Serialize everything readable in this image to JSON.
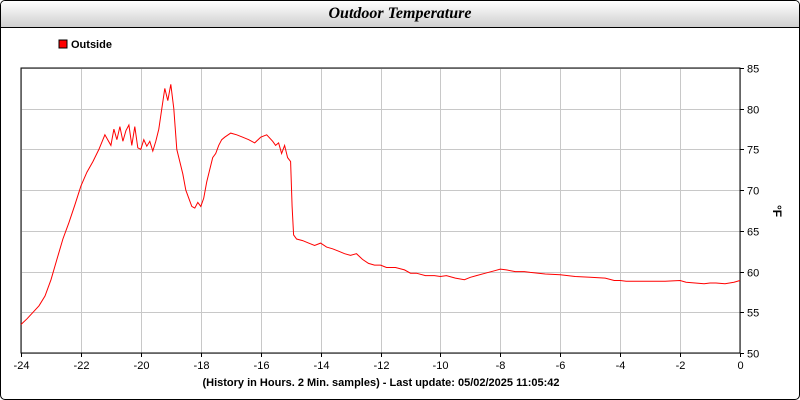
{
  "chart_data": {
    "type": "line",
    "title": "Outdoor Temperature",
    "xlabel": "(History in Hours. 2 Min. samples) - Last update: 05/02/2025 11:05:42",
    "ylabel": "°F",
    "xlim": [
      -24,
      0
    ],
    "ylim": [
      50,
      85
    ],
    "xticks": [
      -24,
      -22,
      -20,
      -18,
      -16,
      -14,
      -12,
      -10,
      -8,
      -6,
      -4,
      -2,
      0
    ],
    "yticks": [
      50,
      55,
      60,
      65,
      70,
      75,
      80,
      85
    ],
    "grid": true,
    "legend_position": "top-left",
    "series": [
      {
        "name": "Outside",
        "color": "#ff0000",
        "x": [
          -24,
          -23.8,
          -23.6,
          -23.4,
          -23.2,
          -23.0,
          -22.8,
          -22.6,
          -22.4,
          -22.2,
          -22.0,
          -21.8,
          -21.6,
          -21.4,
          -21.2,
          -21.0,
          -20.9,
          -20.8,
          -20.7,
          -20.6,
          -20.5,
          -20.4,
          -20.3,
          -20.2,
          -20.1,
          -20.0,
          -19.9,
          -19.8,
          -19.7,
          -19.6,
          -19.5,
          -19.4,
          -19.3,
          -19.2,
          -19.1,
          -19.0,
          -18.9,
          -18.8,
          -18.7,
          -18.6,
          -18.5,
          -18.4,
          -18.3,
          -18.2,
          -18.1,
          -18.0,
          -17.9,
          -17.8,
          -17.7,
          -17.6,
          -17.5,
          -17.4,
          -17.3,
          -17.2,
          -17.0,
          -16.8,
          -16.6,
          -16.4,
          -16.2,
          -16.0,
          -15.8,
          -15.6,
          -15.5,
          -15.4,
          -15.3,
          -15.2,
          -15.1,
          -15.0,
          -14.95,
          -14.9,
          -14.8,
          -14.6,
          -14.4,
          -14.2,
          -14.0,
          -13.8,
          -13.6,
          -13.4,
          -13.2,
          -13.0,
          -12.8,
          -12.6,
          -12.4,
          -12.2,
          -12.0,
          -11.8,
          -11.5,
          -11.2,
          -11.0,
          -10.8,
          -10.5,
          -10.2,
          -10.0,
          -9.8,
          -9.5,
          -9.2,
          -9.0,
          -8.8,
          -8.5,
          -8.2,
          -8.0,
          -7.8,
          -7.5,
          -7.2,
          -7.0,
          -6.5,
          -6.0,
          -5.5,
          -5.0,
          -4.5,
          -4.2,
          -4.0,
          -3.8,
          -3.5,
          -3.0,
          -2.5,
          -2.0,
          -1.8,
          -1.5,
          -1.2,
          -1.0,
          -0.8,
          -0.5,
          -0.2,
          0
        ],
        "values": [
          53.5,
          54.2,
          55.0,
          55.8,
          57.0,
          59.0,
          61.5,
          64.0,
          66.0,
          68.2,
          70.5,
          72.2,
          73.5,
          75.0,
          76.8,
          75.5,
          77.5,
          76.2,
          77.8,
          76.0,
          77.3,
          78.0,
          75.5,
          77.8,
          75.2,
          75.0,
          76.2,
          75.4,
          76.0,
          74.8,
          76.0,
          77.5,
          80.0,
          82.5,
          81.0,
          83.0,
          80.0,
          75.0,
          73.5,
          72.0,
          70.0,
          69.0,
          68.0,
          67.8,
          68.5,
          68.0,
          69.0,
          71.0,
          72.5,
          74.0,
          74.5,
          75.5,
          76.2,
          76.5,
          77.0,
          76.8,
          76.5,
          76.2,
          75.8,
          76.5,
          76.8,
          76.0,
          75.5,
          75.8,
          74.5,
          75.5,
          74.0,
          73.5,
          68.0,
          64.5,
          64.0,
          63.8,
          63.5,
          63.2,
          63.5,
          63.0,
          62.8,
          62.5,
          62.2,
          62.0,
          62.2,
          61.5,
          61.0,
          60.8,
          60.8,
          60.5,
          60.5,
          60.2,
          59.8,
          59.8,
          59.5,
          59.5,
          59.4,
          59.5,
          59.2,
          59.0,
          59.3,
          59.5,
          59.8,
          60.1,
          60.3,
          60.2,
          60.0,
          60.0,
          59.9,
          59.7,
          59.6,
          59.4,
          59.3,
          59.2,
          58.9,
          58.9,
          58.8,
          58.8,
          58.8,
          58.8,
          58.9,
          58.7,
          58.6,
          58.5,
          58.6,
          58.6,
          58.5,
          58.7,
          58.9
        ]
      }
    ]
  }
}
